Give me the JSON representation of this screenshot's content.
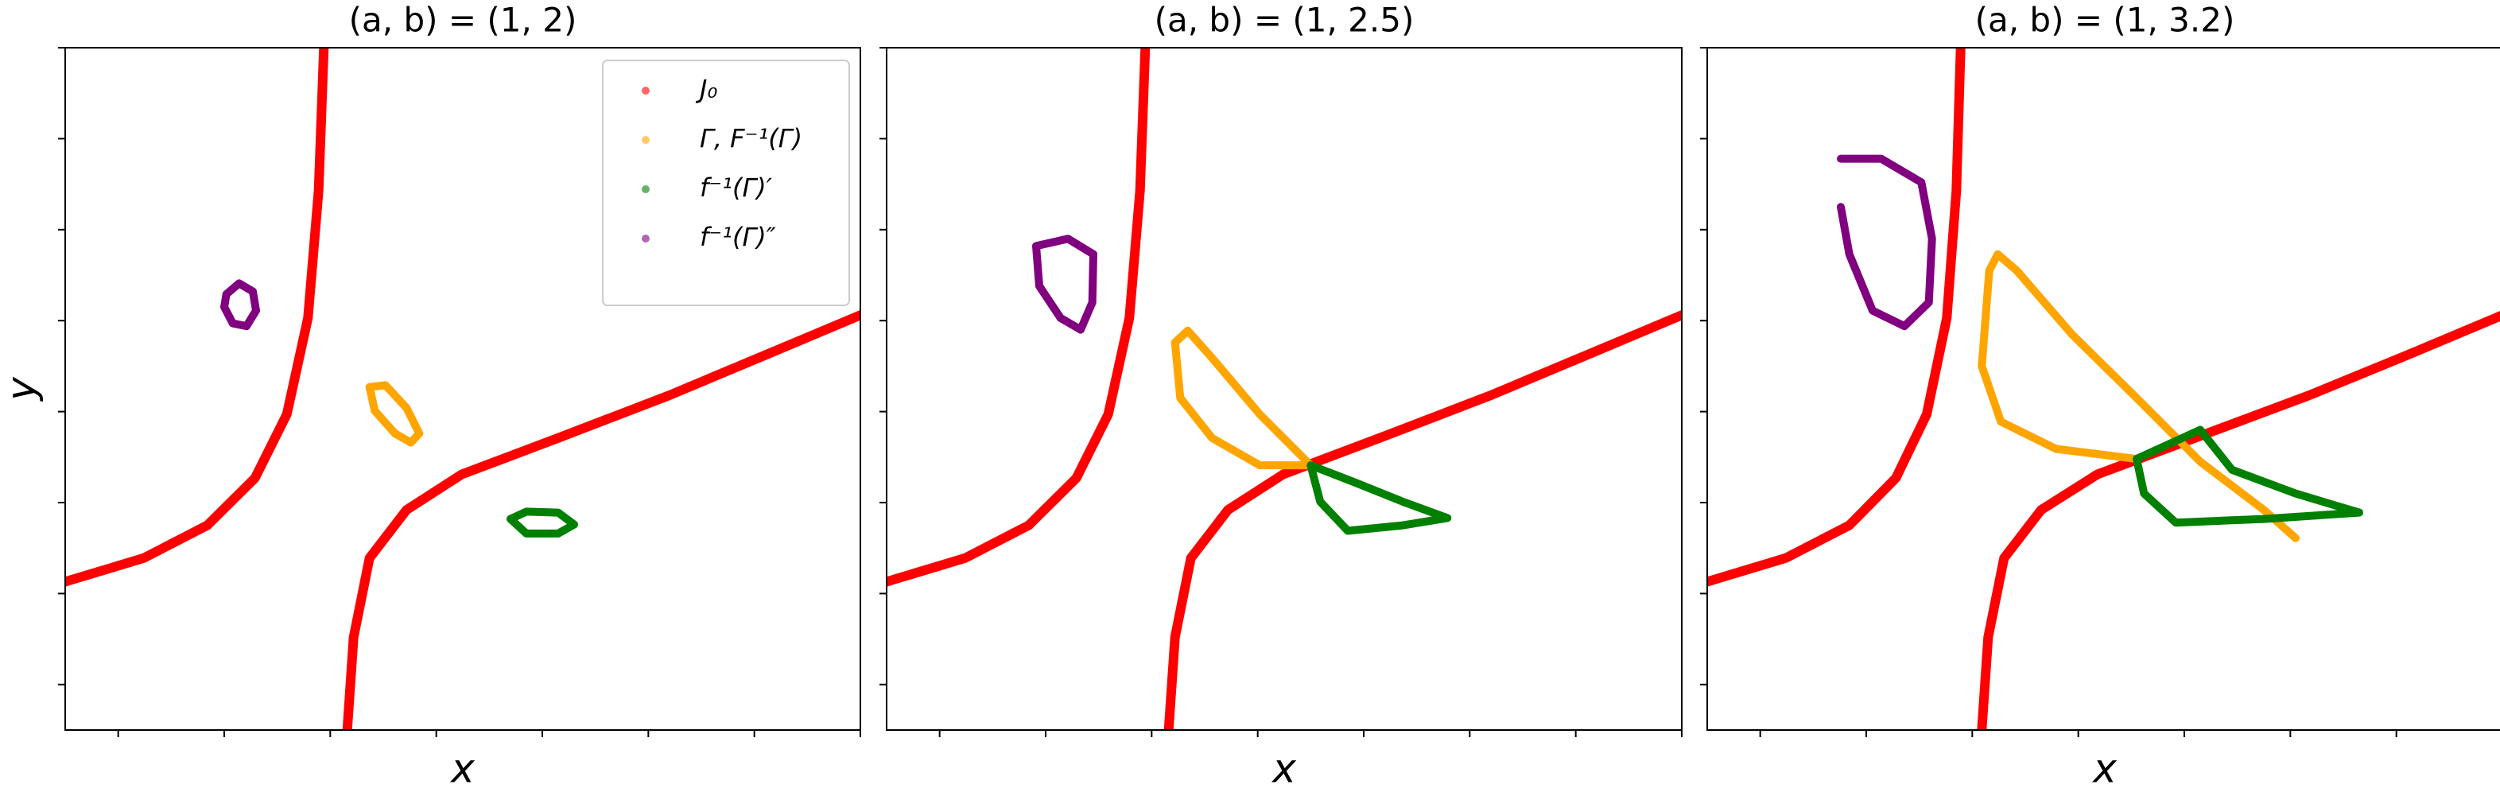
{
  "chart_data": [
    {
      "type": "line",
      "title": "(a, b) =  (1, 2)",
      "xlabel": "x",
      "ylabel": "y",
      "xlim": [
        0,
        7.5
      ],
      "ylim": [
        0,
        7.5
      ],
      "xticks": [
        0.5,
        1.5,
        2.5,
        3.5,
        4.5,
        5.5,
        6.5,
        7.5
      ],
      "yticks": [
        0.5,
        1.5,
        2.5,
        3.5,
        4.5,
        5.5,
        6.5,
        7.5
      ],
      "legend": "upper right",
      "series": [
        {
          "name": "J₀",
          "color": "#ff0000",
          "x": [
            2.44,
            2.39,
            2.29,
            2.09,
            1.79,
            1.34,
            0.74,
            0,
            null,
            2.66,
            2.72,
            2.87,
            3.22,
            3.74,
            4.65,
            5.7,
            6.6,
            7.5
          ],
          "values": [
            7.5,
            5.93,
            4.53,
            3.47,
            2.77,
            2.25,
            1.89,
            1.63,
            null,
            0,
            1.02,
            1.89,
            2.42,
            2.81,
            3.21,
            3.68,
            4.12,
            4.56
          ]
        },
        {
          "name": "Γ, F⁻¹(Γ)",
          "color": "#ffa500",
          "x": [
            2.87,
            3.02,
            3.22,
            3.34,
            3.26,
            3.11,
            2.92,
            2.87
          ],
          "values": [
            3.77,
            3.79,
            3.54,
            3.26,
            3.16,
            3.26,
            3.51,
            3.77
          ]
        },
        {
          "name": "f⁻¹(Γ)′",
          "color": "#008000",
          "x": [
            4.2,
            4.35,
            4.65,
            4.8,
            4.65,
            4.35,
            4.2
          ],
          "values": [
            2.32,
            2.4,
            2.39,
            2.26,
            2.16,
            2.16,
            2.32
          ]
        },
        {
          "name": "f⁻¹(Γ)″",
          "color": "#800080",
          "x": [
            1.52,
            1.64,
            1.77,
            1.8,
            1.71,
            1.58,
            1.5,
            1.52
          ],
          "values": [
            4.79,
            4.91,
            4.82,
            4.61,
            4.44,
            4.47,
            4.65,
            4.79
          ]
        }
      ]
    },
    {
      "type": "line",
      "title": "(a, b) =  (1, 2.5)",
      "xlabel": "x",
      "xlim": [
        0,
        7.5
      ],
      "ylim": [
        0,
        7.5
      ],
      "xticks": [
        0.5,
        1.5,
        2.5,
        3.5,
        4.5,
        5.5,
        6.5,
        7.5
      ],
      "yticks": [
        0.5,
        1.5,
        2.5,
        3.5,
        4.5,
        5.5,
        6.5,
        7.5
      ],
      "series": [
        {
          "color": "#ff0000",
          "x": [
            2.44,
            2.39,
            2.29,
            2.09,
            1.79,
            1.34,
            0.74,
            0,
            null,
            2.66,
            2.72,
            2.87,
            3.22,
            3.74,
            4.65,
            5.7,
            6.6,
            7.5
          ],
          "values": [
            7.5,
            5.93,
            4.53,
            3.47,
            2.77,
            2.25,
            1.89,
            1.63,
            null,
            0,
            1.02,
            1.89,
            2.42,
            2.81,
            3.21,
            3.68,
            4.12,
            4.56
          ]
        },
        {
          "color": "#ffa500",
          "x": [
            4.0,
            3.52,
            3.07,
            2.77,
            2.72,
            2.84,
            3.07,
            3.52,
            4.0
          ],
          "values": [
            2.91,
            2.91,
            3.21,
            3.65,
            4.26,
            4.39,
            4.09,
            3.47,
            2.91
          ]
        },
        {
          "color": "#008000",
          "x": [
            4.0,
            4.09,
            4.35,
            4.87,
            5.29,
            4.87,
            4.42,
            4.0
          ],
          "values": [
            2.91,
            2.51,
            2.19,
            2.25,
            2.33,
            2.51,
            2.72,
            2.91
          ]
        },
        {
          "color": "#800080",
          "x": [
            1.41,
            1.71,
            1.95,
            1.94,
            1.83,
            1.64,
            1.44,
            1.41
          ],
          "values": [
            5.32,
            5.4,
            5.23,
            4.7,
            4.4,
            4.53,
            4.88,
            5.32
          ]
        }
      ]
    },
    {
      "type": "line",
      "title": "(a, b) =  (1, 3.2)",
      "xlabel": "x",
      "xlim": [
        0,
        7.5
      ],
      "ylim": [
        0,
        7.5
      ],
      "xticks": [
        0.5,
        1.5,
        2.5,
        3.5,
        4.5,
        5.5,
        6.5,
        7.5
      ],
      "yticks": [
        0.5,
        1.5,
        2.5,
        3.5,
        4.5,
        5.5,
        6.5,
        7.5
      ],
      "series": [
        {
          "color": "#ff0000",
          "x": [
            2.39,
            2.35,
            2.26,
            2.07,
            1.78,
            1.34,
            0.74,
            0,
            null,
            2.59,
            2.65,
            2.8,
            3.15,
            3.68,
            4.6,
            5.68,
            6.6,
            7.5
          ],
          "values": [
            7.5,
            5.93,
            4.53,
            3.47,
            2.77,
            2.25,
            1.89,
            1.63,
            null,
            0,
            1.02,
            1.89,
            2.42,
            2.81,
            3.21,
            3.68,
            4.12,
            4.56
          ]
        },
        {
          "color": "#ffa500",
          "x": [
            4.05,
            3.29,
            2.77,
            2.59,
            2.66,
            2.74,
            2.92,
            3.44,
            4.05,
            4.65,
            5.25,
            5.55
          ],
          "values": [
            2.98,
            3.09,
            3.39,
            4.0,
            5.05,
            5.23,
            5.05,
            4.35,
            3.65,
            2.95,
            2.42,
            2.11
          ]
        },
        {
          "color": "#008000",
          "x": [
            4.05,
            4.12,
            4.42,
            5.25,
            6.15,
            5.55,
            4.95,
            4.65,
            4.05
          ],
          "values": [
            2.98,
            2.6,
            2.28,
            2.32,
            2.39,
            2.6,
            2.86,
            3.3,
            2.98
          ]
        },
        {
          "color": "#800080",
          "x": [
            1.26,
            1.64,
            2.02,
            2.12,
            2.09,
            1.86,
            1.56,
            1.34,
            1.26
          ],
          "values": [
            6.28,
            6.28,
            6.02,
            5.4,
            4.7,
            4.44,
            4.61,
            5.23,
            5.75
          ]
        }
      ]
    }
  ]
}
